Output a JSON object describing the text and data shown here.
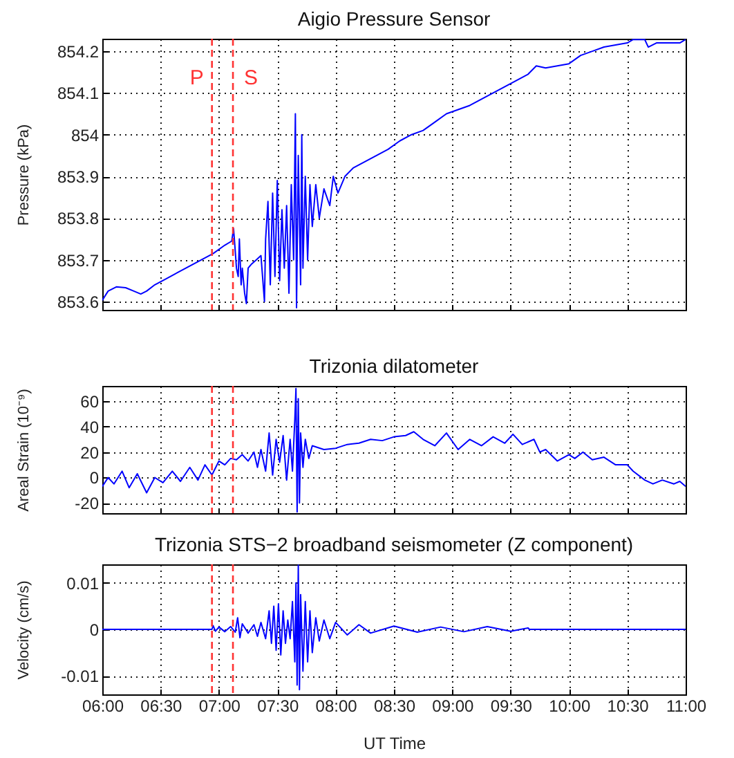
{
  "chart_data": [
    {
      "type": "line",
      "title": "Aigio Pressure Sensor",
      "ylabel": "Pressure (kPa)",
      "xlim": [
        6,
        11
      ],
      "ylim": [
        853.58,
        854.23
      ],
      "xticks": [
        {
          "value": 6,
          "label": null
        },
        {
          "value": 6.5,
          "label": null
        },
        {
          "value": 7,
          "label": null
        },
        {
          "value": 7.5,
          "label": null
        },
        {
          "value": 8,
          "label": null
        },
        {
          "value": 8.5,
          "label": null
        },
        {
          "value": 9,
          "label": null
        },
        {
          "value": 9.5,
          "label": null
        },
        {
          "value": 10,
          "label": null
        },
        {
          "value": 10.5,
          "label": null
        },
        {
          "value": 11,
          "label": null
        }
      ],
      "yticks": [
        853.6,
        853.7,
        853.8,
        853.9,
        854,
        854.1,
        854.2
      ],
      "grid": true,
      "tick_labels": "y",
      "ref_lines": [
        {
          "axis": "x",
          "value": 6.94,
          "label": "P",
          "color": "#ff3333",
          "line_style": "dashed"
        },
        {
          "axis": "x",
          "value": 7.12,
          "label": "S",
          "color": "#ff3333",
          "line_style": "dashed"
        }
      ],
      "series": [
        {
          "color": "#0000ff",
          "x": [
            6.0,
            6.05,
            6.12,
            6.2,
            6.27,
            6.33,
            6.38,
            6.45,
            6.55,
            6.65,
            6.75,
            6.85,
            6.95,
            7.05,
            7.11,
            7.125,
            7.14,
            7.15,
            7.165,
            7.175,
            7.19,
            7.2,
            7.22,
            7.235,
            7.25,
            7.28,
            7.32,
            7.36,
            7.39,
            7.4,
            7.42,
            7.44,
            7.46,
            7.48,
            7.5,
            7.52,
            7.54,
            7.56,
            7.58,
            7.6,
            7.62,
            7.64,
            7.655,
            7.665,
            7.68,
            7.7,
            7.71,
            7.72,
            7.74,
            7.76,
            7.78,
            7.8,
            7.83,
            7.86,
            7.9,
            7.95,
            7.98,
            8.02,
            8.08,
            8.15,
            8.25,
            8.35,
            8.45,
            8.55,
            8.65,
            8.75,
            8.85,
            8.95,
            9.05,
            9.15,
            9.25,
            9.35,
            9.45,
            9.55,
            9.65,
            9.72,
            9.8,
            9.9,
            10.0,
            10.1,
            10.2,
            10.3,
            10.4,
            10.5,
            10.55,
            10.65,
            10.68,
            10.75,
            10.85,
            10.95,
            11.0
          ],
          "values": [
            853.603,
            853.625,
            853.635,
            853.633,
            853.625,
            853.618,
            853.625,
            853.64,
            853.655,
            853.67,
            853.685,
            853.7,
            853.715,
            853.735,
            853.745,
            853.775,
            853.72,
            853.68,
            853.66,
            853.75,
            853.64,
            853.68,
            853.62,
            853.595,
            853.68,
            853.69,
            853.7,
            853.71,
            853.6,
            853.75,
            853.84,
            853.64,
            853.86,
            853.66,
            853.89,
            853.65,
            853.82,
            853.68,
            853.83,
            853.62,
            853.88,
            853.7,
            854.05,
            853.585,
            853.95,
            853.64,
            854.0,
            853.68,
            853.9,
            853.7,
            853.88,
            853.78,
            853.88,
            853.8,
            853.87,
            853.83,
            853.9,
            853.86,
            853.9,
            853.92,
            853.935,
            853.95,
            853.965,
            853.985,
            854.0,
            854.01,
            854.03,
            854.05,
            854.06,
            854.07,
            854.085,
            854.1,
            854.115,
            854.13,
            854.145,
            854.165,
            854.16,
            854.165,
            854.17,
            854.19,
            854.2,
            854.21,
            854.215,
            854.22,
            854.228,
            854.228,
            854.21,
            854.22,
            854.22,
            854.22,
            854.228
          ]
        }
      ]
    },
    {
      "type": "line",
      "title": "Trizonia dilatometer",
      "ylabel": "Areal Strain (10⁻⁹)",
      "xlim": [
        6,
        11
      ],
      "ylim": [
        -28,
        72
      ],
      "xticks": [
        {
          "value": 6,
          "label": null
        },
        {
          "value": 6.5,
          "label": null
        },
        {
          "value": 7,
          "label": null
        },
        {
          "value": 7.5,
          "label": null
        },
        {
          "value": 8,
          "label": null
        },
        {
          "value": 8.5,
          "label": null
        },
        {
          "value": 9,
          "label": null
        },
        {
          "value": 9.5,
          "label": null
        },
        {
          "value": 10,
          "label": null
        },
        {
          "value": 10.5,
          "label": null
        },
        {
          "value": 11,
          "label": null
        }
      ],
      "yticks": [
        -20,
        0,
        20,
        40,
        60
      ],
      "grid": true,
      "tick_labels": "y",
      "ref_lines": [
        {
          "axis": "x",
          "value": 6.94,
          "color": "#ff3333",
          "line_style": "dashed"
        },
        {
          "axis": "x",
          "value": 7.12,
          "color": "#ff3333",
          "line_style": "dashed"
        }
      ],
      "series": [
        {
          "color": "#0000ff",
          "x": [
            6.0,
            6.05,
            6.1,
            6.17,
            6.23,
            6.3,
            6.38,
            6.45,
            6.52,
            6.6,
            6.67,
            6.75,
            6.82,
            6.88,
            6.94,
            7.0,
            7.05,
            7.1,
            7.15,
            7.2,
            7.25,
            7.3,
            7.33,
            7.36,
            7.4,
            7.43,
            7.46,
            7.49,
            7.52,
            7.55,
            7.58,
            7.61,
            7.63,
            7.65,
            7.66,
            7.67,
            7.68,
            7.69,
            7.7,
            7.72,
            7.74,
            7.77,
            7.8,
            7.9,
            8.0,
            8.1,
            8.2,
            8.3,
            8.4,
            8.5,
            8.6,
            8.67,
            8.75,
            8.85,
            8.95,
            9.05,
            9.15,
            9.25,
            9.35,
            9.45,
            9.52,
            9.6,
            9.7,
            9.75,
            9.8,
            9.9,
            10.0,
            10.05,
            10.12,
            10.2,
            10.3,
            10.4,
            10.5,
            10.55,
            10.65,
            10.72,
            10.8,
            10.9,
            10.95,
            11.0
          ],
          "values": [
            -7,
            0,
            -5,
            5,
            -8,
            3,
            -12,
            0,
            -4,
            5,
            -3,
            8,
            -2,
            10,
            2,
            13,
            10,
            15,
            14,
            18,
            13,
            20,
            8,
            22,
            5,
            35,
            2,
            30,
            12,
            33,
            -2,
            30,
            5,
            45,
            70,
            -27,
            62,
            -20,
            35,
            8,
            30,
            15,
            25,
            22,
            23,
            26,
            27,
            30,
            29,
            32,
            33,
            36,
            30,
            25,
            35,
            22,
            30,
            25,
            32,
            27,
            34,
            26,
            30,
            20,
            22,
            13,
            18,
            15,
            20,
            14,
            16,
            10,
            10,
            5,
            -2,
            -5,
            -2,
            -5,
            -3,
            -7
          ]
        }
      ]
    },
    {
      "type": "line",
      "title": "Trizonia STS−2 broadband seismometer (Z component)",
      "xlabel": "UT Time",
      "ylabel": "Velocity (cm/s)",
      "xlim": [
        6,
        11
      ],
      "ylim": [
        -0.014,
        0.014
      ],
      "xticks": [
        {
          "value": 6,
          "label": "06:00"
        },
        {
          "value": 6.5,
          "label": "06:30"
        },
        {
          "value": 7,
          "label": "07:00"
        },
        {
          "value": 7.5,
          "label": "07:30"
        },
        {
          "value": 8,
          "label": "08:00"
        },
        {
          "value": 8.5,
          "label": "08:30"
        },
        {
          "value": 9,
          "label": "09:00"
        },
        {
          "value": 9.5,
          "label": "09:30"
        },
        {
          "value": 10,
          "label": "10:00"
        },
        {
          "value": 10.5,
          "label": "10:30"
        },
        {
          "value": 11,
          "label": "11:00"
        }
      ],
      "yticks": [
        -0.01,
        0,
        0.01
      ],
      "grid": true,
      "ref_lines": [
        {
          "axis": "x",
          "value": 6.94,
          "color": "#ff3333",
          "line_style": "dashed"
        },
        {
          "axis": "x",
          "value": 7.12,
          "color": "#ff3333",
          "line_style": "dashed"
        }
      ],
      "series": [
        {
          "color": "#0000ff",
          "x": [
            6.0,
            6.94,
            6.95,
            6.97,
            7.0,
            7.05,
            7.1,
            7.14,
            7.16,
            7.18,
            7.2,
            7.25,
            7.3,
            7.33,
            7.36,
            7.4,
            7.43,
            7.45,
            7.47,
            7.49,
            7.51,
            7.53,
            7.55,
            7.57,
            7.59,
            7.61,
            7.63,
            7.65,
            7.66,
            7.67,
            7.68,
            7.69,
            7.7,
            7.72,
            7.74,
            7.76,
            7.78,
            7.8,
            7.83,
            7.86,
            7.9,
            7.95,
            8.0,
            8.1,
            8.2,
            8.3,
            8.5,
            8.7,
            8.9,
            9.1,
            9.3,
            9.5,
            9.65,
            9.66,
            11.0
          ],
          "values": [
            0,
            0,
            0.0008,
            -0.0004,
            0.0005,
            -0.0005,
            0.0006,
            -0.0006,
            0.0025,
            -0.0018,
            0.0012,
            -0.0008,
            0.001,
            -0.0015,
            0.0015,
            -0.002,
            0.004,
            -0.003,
            0.005,
            -0.0045,
            0.0055,
            -0.0055,
            0.004,
            -0.003,
            0.002,
            -0.002,
            0.006,
            -0.007,
            0.01,
            -0.012,
            0.0138,
            -0.013,
            0.0075,
            -0.009,
            0.006,
            -0.007,
            0.004,
            -0.005,
            0.0025,
            -0.0025,
            0.002,
            -0.002,
            0.0015,
            -0.0012,
            0.001,
            -0.0008,
            0.0007,
            -0.0006,
            0.0005,
            -0.0005,
            0.0006,
            -0.0004,
            0.0003,
            0,
            0
          ]
        }
      ]
    }
  ]
}
